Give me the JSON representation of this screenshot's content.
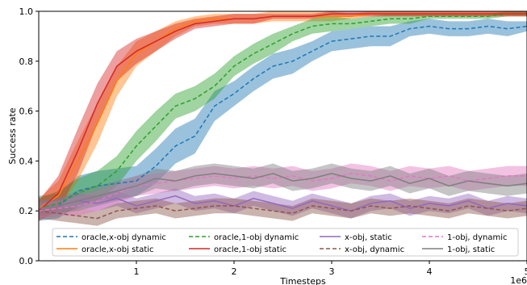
{
  "chart_data": {
    "type": "line",
    "xlabel": "Timesteps",
    "ylabel": "Success rate",
    "x_multiplier_label": "1e6",
    "xlim": [
      0.0,
      5.0
    ],
    "ylim": [
      0.0,
      1.0
    ],
    "x_ticks": [
      1,
      2,
      3,
      4,
      5
    ],
    "y_ticks": [
      0.0,
      0.2,
      0.4,
      0.6,
      0.8,
      1.0
    ],
    "y_tick_labels": [
      "0.0",
      "0.2",
      "0.4",
      "0.6",
      "0.8",
      "1.0"
    ],
    "grid": false,
    "legend": "bottom-center",
    "x": [
      0.0,
      0.2,
      0.4,
      0.6,
      0.8,
      1.0,
      1.2,
      1.4,
      1.6,
      1.8,
      2.0,
      2.2,
      2.4,
      2.6,
      2.8,
      3.0,
      3.2,
      3.4,
      3.6,
      3.8,
      4.0,
      4.2,
      4.4,
      4.6,
      4.8,
      5.0
    ],
    "series": [
      {
        "name": "oracle,x-obj dynamic",
        "color": "#1f77b4",
        "dash": "dashed",
        "values": [
          0.21,
          0.22,
          0.28,
          0.3,
          0.31,
          0.32,
          0.38,
          0.46,
          0.5,
          0.62,
          0.67,
          0.73,
          0.78,
          0.8,
          0.84,
          0.88,
          0.89,
          0.9,
          0.9,
          0.93,
          0.94,
          0.93,
          0.93,
          0.94,
          0.93,
          0.94
        ],
        "band": [
          0.05,
          0.05,
          0.06,
          0.06,
          0.06,
          0.06,
          0.07,
          0.07,
          0.07,
          0.06,
          0.05,
          0.05,
          0.05,
          0.05,
          0.04,
          0.04,
          0.04,
          0.04,
          0.04,
          0.03,
          0.03,
          0.03,
          0.03,
          0.03,
          0.03,
          0.02
        ]
      },
      {
        "name": "oracle,x-obj static",
        "color": "#ff7f0e",
        "dash": "solid",
        "values": [
          0.21,
          0.26,
          0.4,
          0.55,
          0.72,
          0.83,
          0.88,
          0.93,
          0.96,
          0.97,
          0.97,
          0.97,
          0.98,
          0.98,
          0.98,
          0.98,
          0.98,
          0.99,
          0.99,
          0.99,
          0.99,
          0.99,
          0.99,
          0.99,
          0.99,
          0.99
        ],
        "band": [
          0.04,
          0.06,
          0.08,
          0.08,
          0.06,
          0.05,
          0.04,
          0.03,
          0.02,
          0.02,
          0.02,
          0.02,
          0.02,
          0.02,
          0.02,
          0.02,
          0.01,
          0.01,
          0.01,
          0.01,
          0.01,
          0.01,
          0.01,
          0.01,
          0.01,
          0.01
        ]
      },
      {
        "name": "oracle,1-obj dynamic",
        "color": "#2ca02c",
        "dash": "dashed",
        "values": [
          0.21,
          0.23,
          0.27,
          0.3,
          0.36,
          0.46,
          0.54,
          0.62,
          0.65,
          0.7,
          0.78,
          0.83,
          0.87,
          0.91,
          0.94,
          0.95,
          0.95,
          0.96,
          0.97,
          0.97,
          0.98,
          0.98,
          0.98,
          0.98,
          0.99,
          0.99
        ],
        "band": [
          0.04,
          0.05,
          0.06,
          0.06,
          0.06,
          0.06,
          0.06,
          0.05,
          0.05,
          0.05,
          0.04,
          0.04,
          0.04,
          0.03,
          0.03,
          0.03,
          0.02,
          0.02,
          0.02,
          0.02,
          0.01,
          0.01,
          0.01,
          0.01,
          0.01,
          0.01
        ]
      },
      {
        "name": "oracle,1-obj static",
        "color": "#d62728",
        "dash": "solid",
        "values": [
          0.2,
          0.27,
          0.44,
          0.63,
          0.78,
          0.84,
          0.88,
          0.92,
          0.95,
          0.96,
          0.97,
          0.97,
          0.98,
          0.98,
          0.98,
          0.99,
          0.99,
          0.99,
          0.99,
          0.99,
          0.99,
          0.99,
          0.99,
          0.99,
          0.99,
          0.99
        ],
        "band": [
          0.04,
          0.07,
          0.09,
          0.08,
          0.06,
          0.05,
          0.04,
          0.03,
          0.02,
          0.02,
          0.02,
          0.02,
          0.01,
          0.01,
          0.01,
          0.01,
          0.01,
          0.01,
          0.01,
          0.01,
          0.01,
          0.01,
          0.01,
          0.01,
          0.01,
          0.01
        ]
      },
      {
        "name": "x-obj, static",
        "color": "#9467bd",
        "dash": "solid",
        "values": [
          0.21,
          0.22,
          0.24,
          0.23,
          0.25,
          0.22,
          0.24,
          0.26,
          0.23,
          0.24,
          0.22,
          0.25,
          0.23,
          0.21,
          0.24,
          0.22,
          0.2,
          0.23,
          0.24,
          0.21,
          0.23,
          0.22,
          0.24,
          0.21,
          0.23,
          0.22
        ],
        "band": [
          0.03,
          0.03,
          0.03,
          0.03,
          0.03,
          0.03,
          0.03,
          0.03,
          0.03,
          0.03,
          0.03,
          0.03,
          0.03,
          0.03,
          0.03,
          0.03,
          0.03,
          0.03,
          0.03,
          0.03,
          0.03,
          0.03,
          0.03,
          0.03,
          0.03,
          0.03
        ]
      },
      {
        "name": "x-obj, dynamic",
        "color": "#8c564b",
        "dash": "dashed",
        "values": [
          0.2,
          0.19,
          0.18,
          0.17,
          0.2,
          0.21,
          0.22,
          0.2,
          0.21,
          0.22,
          0.22,
          0.21,
          0.2,
          0.19,
          0.22,
          0.21,
          0.2,
          0.22,
          0.21,
          0.22,
          0.21,
          0.2,
          0.22,
          0.21,
          0.2,
          0.21
        ],
        "band": [
          0.03,
          0.03,
          0.03,
          0.03,
          0.03,
          0.03,
          0.03,
          0.03,
          0.03,
          0.03,
          0.03,
          0.03,
          0.03,
          0.03,
          0.03,
          0.03,
          0.03,
          0.03,
          0.03,
          0.03,
          0.03,
          0.03,
          0.03,
          0.03,
          0.03,
          0.03
        ]
      },
      {
        "name": "1-obj, dynamic",
        "color": "#e377c2",
        "dash": "dashed",
        "values": [
          0.2,
          0.21,
          0.22,
          0.24,
          0.27,
          0.3,
          0.31,
          0.32,
          0.33,
          0.34,
          0.33,
          0.34,
          0.33,
          0.34,
          0.32,
          0.33,
          0.35,
          0.34,
          0.32,
          0.34,
          0.33,
          0.34,
          0.32,
          0.33,
          0.34,
          0.34
        ],
        "band": [
          0.03,
          0.03,
          0.04,
          0.04,
          0.04,
          0.04,
          0.04,
          0.04,
          0.04,
          0.04,
          0.04,
          0.04,
          0.04,
          0.04,
          0.04,
          0.04,
          0.04,
          0.04,
          0.04,
          0.04,
          0.04,
          0.04,
          0.04,
          0.04,
          0.04,
          0.04
        ]
      },
      {
        "name": "1-obj, static",
        "color": "#7f7f7f",
        "dash": "solid",
        "values": [
          0.21,
          0.22,
          0.24,
          0.26,
          0.28,
          0.3,
          0.33,
          0.32,
          0.34,
          0.35,
          0.34,
          0.33,
          0.35,
          0.32,
          0.33,
          0.35,
          0.33,
          0.32,
          0.34,
          0.31,
          0.33,
          0.3,
          0.32,
          0.31,
          0.3,
          0.31
        ],
        "band": [
          0.03,
          0.03,
          0.04,
          0.04,
          0.04,
          0.04,
          0.04,
          0.04,
          0.04,
          0.04,
          0.04,
          0.04,
          0.04,
          0.04,
          0.04,
          0.04,
          0.04,
          0.04,
          0.04,
          0.04,
          0.04,
          0.04,
          0.04,
          0.04,
          0.04,
          0.04
        ]
      }
    ]
  }
}
